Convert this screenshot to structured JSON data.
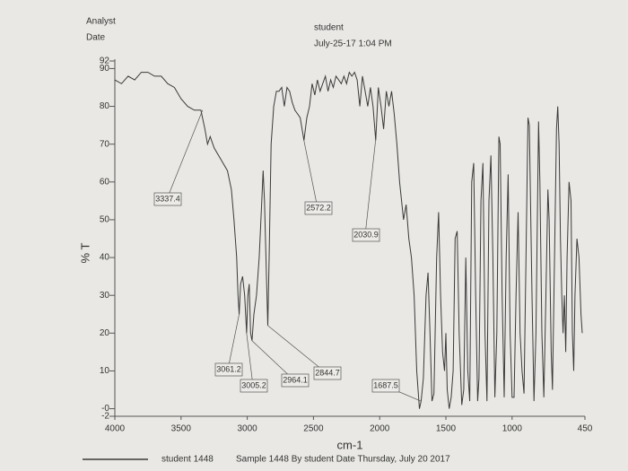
{
  "chart_data": {
    "type": "line",
    "analyst_label": "Analyst",
    "date_label": "Date",
    "analyst": "student",
    "date": "July-25-17 1:04 PM",
    "footer": "Sample 1448 By student Date Thursday, July 20 2017",
    "xlabel": "cm-1",
    "ylabel": "% T",
    "xlim": [
      4000,
      450
    ],
    "xticks": [
      4000,
      3500,
      3000,
      2500,
      2000,
      1500,
      1000,
      450
    ],
    "ylim": [
      -2,
      92
    ],
    "yticks": [
      -2,
      {
        "value": 0,
        "label": "-0"
      },
      10,
      20,
      30,
      40,
      50,
      60,
      70,
      80,
      90,
      92
    ],
    "peak_labels": [
      3337.4,
      2572.2,
      2030.9,
      3061.2,
      3005.2,
      2964.1,
      2844.7,
      1687.5
    ],
    "x": [
      4000,
      3950,
      3900,
      3850,
      3800,
      3750,
      3700,
      3650,
      3600,
      3550,
      3500,
      3450,
      3400,
      3350,
      3320,
      3300,
      3280,
      3250,
      3200,
      3150,
      3120,
      3100,
      3080,
      3070,
      3061,
      3050,
      3035,
      3020,
      3005,
      2995,
      2985,
      2975,
      2964,
      2950,
      2930,
      2910,
      2890,
      2880,
      2870,
      2855,
      2845,
      2835,
      2820,
      2800,
      2780,
      2760,
      2740,
      2720,
      2700,
      2680,
      2660,
      2640,
      2620,
      2600,
      2572,
      2550,
      2530,
      2510,
      2490,
      2470,
      2450,
      2430,
      2410,
      2390,
      2370,
      2350,
      2330,
      2310,
      2290,
      2270,
      2250,
      2230,
      2210,
      2190,
      2170,
      2150,
      2130,
      2110,
      2090,
      2070,
      2050,
      2030,
      2010,
      1990,
      1970,
      1950,
      1930,
      1910,
      1890,
      1870,
      1850,
      1820,
      1800,
      1780,
      1760,
      1740,
      1720,
      1700,
      1687,
      1670,
      1650,
      1635,
      1620,
      1605,
      1590,
      1570,
      1555,
      1540,
      1525,
      1510,
      1500,
      1490,
      1475,
      1460,
      1445,
      1430,
      1415,
      1400,
      1380,
      1365,
      1350,
      1335,
      1320,
      1305,
      1290,
      1275,
      1260,
      1250,
      1235,
      1220,
      1205,
      1190,
      1175,
      1160,
      1145,
      1130,
      1115,
      1100,
      1090,
      1075,
      1060,
      1045,
      1030,
      1015,
      1000,
      985,
      970,
      955,
      940,
      925,
      910,
      895,
      880,
      870,
      850,
      835,
      820,
      800,
      790,
      775,
      760,
      745,
      730,
      720,
      705,
      695,
      680,
      665,
      655,
      645,
      635,
      625,
      615,
      605,
      595,
      585,
      570,
      555,
      545,
      535,
      525,
      510,
      495,
      480,
      470
    ],
    "series": [
      {
        "name": "student 1448",
        "color": "#3a3a3a",
        "values": [
          87,
          86,
          88,
          87,
          89,
          89,
          88,
          88,
          86,
          85,
          82,
          80,
          79,
          79,
          74,
          70,
          72,
          69,
          66,
          63,
          58,
          50,
          40,
          30,
          25,
          33,
          35,
          30,
          20,
          30,
          33,
          20,
          18,
          25,
          30,
          40,
          55,
          63,
          55,
          35,
          22,
          40,
          70,
          80,
          84,
          84,
          85,
          80,
          85,
          84,
          81,
          79,
          78,
          77,
          71,
          77,
          80,
          86,
          83,
          87,
          84,
          86,
          88,
          84,
          87,
          85,
          88,
          87,
          86,
          88,
          86,
          89,
          88,
          89,
          87,
          80,
          88,
          84,
          80,
          85,
          80,
          71,
          85,
          80,
          74,
          84,
          80,
          84,
          78,
          70,
          60,
          50,
          54,
          45,
          40,
          30,
          10,
          0,
          2,
          8,
          30,
          36,
          20,
          2,
          4,
          40,
          52,
          30,
          15,
          10,
          20,
          5,
          0,
          3,
          10,
          45,
          47,
          20,
          1,
          5,
          40,
          10,
          2,
          60,
          65,
          30,
          2,
          8,
          55,
          65,
          20,
          2,
          55,
          67,
          40,
          3,
          20,
          72,
          70,
          30,
          3,
          40,
          62,
          20,
          3,
          3,
          30,
          52,
          20,
          10,
          4,
          40,
          77,
          75,
          30,
          2,
          20,
          76,
          60,
          20,
          3,
          30,
          58,
          50,
          15,
          5,
          40,
          74,
          80,
          70,
          45,
          30,
          20,
          30,
          15,
          40,
          60,
          55,
          20,
          10,
          30,
          45,
          40,
          25,
          20
        ]
      }
    ]
  }
}
